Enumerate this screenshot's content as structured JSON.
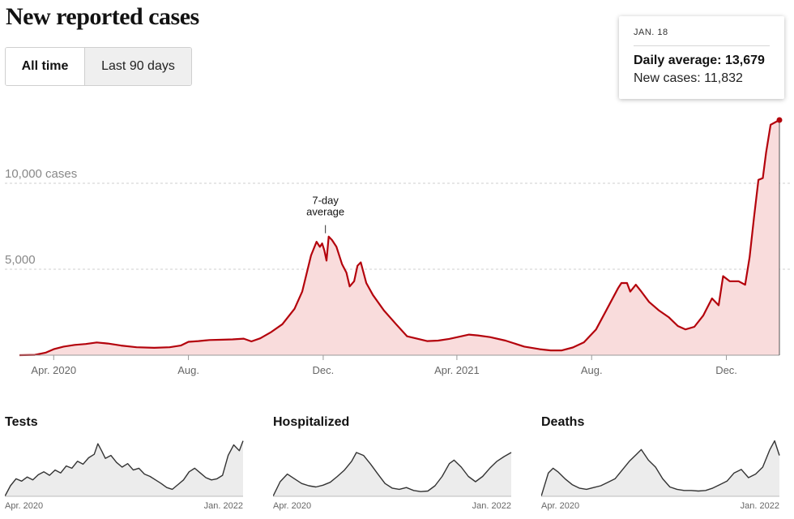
{
  "title": "New reported cases",
  "toggle": {
    "all_time": "All time",
    "last_90": "Last 90 days",
    "selected": "All time"
  },
  "colors": {
    "line": "#b4030c",
    "area": "#f9dcdc",
    "small_line": "#333333",
    "small_area": "#ececec"
  },
  "tooltip": {
    "date": "JAN. 18",
    "avg_label": "Daily average: 13,679",
    "new_label": "New cases: 11,832"
  },
  "chart_data": [
    {
      "type": "area",
      "title": "New reported cases",
      "y_tick_labels": [
        "10,000 cases",
        "5,000"
      ],
      "y_ticks": [
        10000,
        5000
      ],
      "ylim": [
        0,
        15000
      ],
      "x_tick_labels": [
        "Apr. 2020",
        "Aug.",
        "Dec.",
        "Apr. 2021",
        "Aug.",
        "Dec."
      ],
      "x_ticks": [
        "2020-04-01",
        "2020-08-01",
        "2020-12-01",
        "2021-04-01",
        "2021-08-01",
        "2021-12-01"
      ],
      "xlim": [
        "2020-03-01",
        "2022-01-18"
      ],
      "grid": "horizontal dashed",
      "annotation": {
        "text": [
          "7-day",
          "average"
        ],
        "x": "2020-12-03",
        "y": 7000
      },
      "series": [
        {
          "name": "7-day average",
          "points": [
            [
              "2020-03-01",
              0
            ],
            [
              "2020-03-15",
              20
            ],
            [
              "2020-03-25",
              150
            ],
            [
              "2020-04-01",
              350
            ],
            [
              "2020-04-10",
              500
            ],
            [
              "2020-04-20",
              600
            ],
            [
              "2020-04-30",
              650
            ],
            [
              "2020-05-10",
              740
            ],
            [
              "2020-05-20",
              680
            ],
            [
              "2020-06-01",
              560
            ],
            [
              "2020-06-15",
              460
            ],
            [
              "2020-07-01",
              430
            ],
            [
              "2020-07-15",
              460
            ],
            [
              "2020-07-25",
              560
            ],
            [
              "2020-08-01",
              780
            ],
            [
              "2020-08-10",
              820
            ],
            [
              "2020-08-20",
              880
            ],
            [
              "2020-09-01",
              900
            ],
            [
              "2020-09-10",
              920
            ],
            [
              "2020-09-20",
              960
            ],
            [
              "2020-09-27",
              800
            ],
            [
              "2020-10-05",
              980
            ],
            [
              "2020-10-15",
              1350
            ],
            [
              "2020-10-25",
              1800
            ],
            [
              "2020-11-05",
              2700
            ],
            [
              "2020-11-12",
              3700
            ],
            [
              "2020-11-20",
              5800
            ],
            [
              "2020-11-25",
              6600
            ],
            [
              "2020-11-28",
              6300
            ],
            [
              "2020-11-30",
              6500
            ],
            [
              "2020-12-02",
              6100
            ],
            [
              "2020-12-04",
              5500
            ],
            [
              "2020-12-06",
              6900
            ],
            [
              "2020-12-09",
              6700
            ],
            [
              "2020-12-13",
              6300
            ],
            [
              "2020-12-18",
              5300
            ],
            [
              "2020-12-22",
              4800
            ],
            [
              "2020-12-25",
              4000
            ],
            [
              "2020-12-29",
              4300
            ],
            [
              "2021-01-01",
              5200
            ],
            [
              "2021-01-04",
              5400
            ],
            [
              "2021-01-09",
              4200
            ],
            [
              "2021-01-15",
              3500
            ],
            [
              "2021-01-25",
              2600
            ],
            [
              "2021-02-05",
              1800
            ],
            [
              "2021-02-15",
              1100
            ],
            [
              "2021-02-25",
              950
            ],
            [
              "2021-03-05",
              820
            ],
            [
              "2021-03-15",
              850
            ],
            [
              "2021-03-25",
              950
            ],
            [
              "2021-04-05",
              1100
            ],
            [
              "2021-04-12",
              1200
            ],
            [
              "2021-04-20",
              1150
            ],
            [
              "2021-05-01",
              1050
            ],
            [
              "2021-05-15",
              850
            ],
            [
              "2021-06-01",
              500
            ],
            [
              "2021-06-15",
              350
            ],
            [
              "2021-06-25",
              280
            ],
            [
              "2021-07-05",
              280
            ],
            [
              "2021-07-15",
              450
            ],
            [
              "2021-07-25",
              750
            ],
            [
              "2021-08-05",
              1500
            ],
            [
              "2021-08-15",
              2700
            ],
            [
              "2021-08-25",
              3900
            ],
            [
              "2021-08-28",
              4200
            ],
            [
              "2021-09-02",
              4200
            ],
            [
              "2021-09-05",
              3700
            ],
            [
              "2021-09-10",
              4100
            ],
            [
              "2021-09-15",
              3700
            ],
            [
              "2021-09-22",
              3100
            ],
            [
              "2021-10-01",
              2600
            ],
            [
              "2021-10-10",
              2200
            ],
            [
              "2021-10-18",
              1700
            ],
            [
              "2021-10-25",
              1500
            ],
            [
              "2021-11-02",
              1650
            ],
            [
              "2021-11-10",
              2300
            ],
            [
              "2021-11-18",
              3300
            ],
            [
              "2021-11-24",
              2900
            ],
            [
              "2021-11-28",
              4600
            ],
            [
              "2021-12-04",
              4300
            ],
            [
              "2021-12-12",
              4300
            ],
            [
              "2021-12-18",
              4100
            ],
            [
              "2021-12-22",
              5700
            ],
            [
              "2021-12-26",
              8000
            ],
            [
              "2021-12-30",
              10200
            ],
            [
              "2022-01-03",
              10300
            ],
            [
              "2022-01-06",
              11800
            ],
            [
              "2022-01-10",
              13400
            ],
            [
              "2022-01-18",
              13679
            ]
          ]
        }
      ]
    },
    {
      "type": "area",
      "title": "Tests",
      "x_tick_labels": [
        "Apr. 2020",
        "Jan. 2022"
      ],
      "series": [
        {
          "points": [
            [
              0,
              0
            ],
            [
              3,
              18
            ],
            [
              6,
              30
            ],
            [
              9,
              26
            ],
            [
              12,
              33
            ],
            [
              15,
              28
            ],
            [
              18,
              37
            ],
            [
              21,
              42
            ],
            [
              24,
              36
            ],
            [
              27,
              45
            ],
            [
              30,
              40
            ],
            [
              33,
              52
            ],
            [
              36,
              48
            ],
            [
              39,
              60
            ],
            [
              42,
              55
            ],
            [
              45,
              66
            ],
            [
              48,
              72
            ],
            [
              50,
              90
            ],
            [
              52,
              78
            ],
            [
              54,
              65
            ],
            [
              57,
              70
            ],
            [
              60,
              58
            ],
            [
              63,
              50
            ],
            [
              66,
              56
            ],
            [
              69,
              45
            ],
            [
              72,
              48
            ],
            [
              75,
              38
            ],
            [
              78,
              34
            ],
            [
              81,
              28
            ],
            [
              84,
              22
            ],
            [
              87,
              15
            ],
            [
              90,
              12
            ],
            [
              93,
              20
            ],
            [
              96,
              28
            ],
            [
              99,
              42
            ],
            [
              102,
              48
            ],
            [
              105,
              40
            ],
            [
              108,
              32
            ],
            [
              111,
              28
            ],
            [
              114,
              30
            ],
            [
              117,
              36
            ],
            [
              120,
              70
            ],
            [
              123,
              88
            ],
            [
              126,
              78
            ],
            [
              128,
              95
            ]
          ]
        }
      ]
    },
    {
      "type": "area",
      "title": "Hospitalized",
      "x_tick_labels": [
        "Apr. 2020",
        "Jan. 2022"
      ],
      "series": [
        {
          "points": [
            [
              0,
              0
            ],
            [
              3,
              25
            ],
            [
              6,
              38
            ],
            [
              9,
              30
            ],
            [
              12,
              22
            ],
            [
              15,
              18
            ],
            [
              18,
              16
            ],
            [
              21,
              19
            ],
            [
              24,
              24
            ],
            [
              27,
              34
            ],
            [
              30,
              45
            ],
            [
              33,
              60
            ],
            [
              35,
              75
            ],
            [
              38,
              70
            ],
            [
              41,
              55
            ],
            [
              44,
              38
            ],
            [
              47,
              22
            ],
            [
              50,
              14
            ],
            [
              53,
              12
            ],
            [
              56,
              15
            ],
            [
              59,
              10
            ],
            [
              62,
              8
            ],
            [
              65,
              9
            ],
            [
              68,
              18
            ],
            [
              71,
              34
            ],
            [
              74,
              56
            ],
            [
              76,
              62
            ],
            [
              79,
              50
            ],
            [
              82,
              34
            ],
            [
              85,
              25
            ],
            [
              88,
              34
            ],
            [
              91,
              48
            ],
            [
              94,
              60
            ],
            [
              97,
              68
            ],
            [
              100,
              75
            ]
          ]
        }
      ]
    },
    {
      "type": "area",
      "title": "Deaths",
      "x_tick_labels": [
        "Apr. 2020",
        "Jan. 2022"
      ],
      "series": [
        {
          "points": [
            [
              0,
              0
            ],
            [
              3,
              40
            ],
            [
              5,
              48
            ],
            [
              7,
              42
            ],
            [
              10,
              30
            ],
            [
              13,
              20
            ],
            [
              16,
              14
            ],
            [
              19,
              12
            ],
            [
              22,
              15
            ],
            [
              25,
              18
            ],
            [
              28,
              24
            ],
            [
              31,
              30
            ],
            [
              34,
              45
            ],
            [
              37,
              60
            ],
            [
              40,
              72
            ],
            [
              42,
              80
            ],
            [
              45,
              62
            ],
            [
              48,
              50
            ],
            [
              51,
              30
            ],
            [
              54,
              16
            ],
            [
              57,
              12
            ],
            [
              60,
              10
            ],
            [
              63,
              10
            ],
            [
              66,
              9
            ],
            [
              69,
              10
            ],
            [
              72,
              14
            ],
            [
              75,
              20
            ],
            [
              78,
              26
            ],
            [
              81,
              40
            ],
            [
              84,
              46
            ],
            [
              87,
              32
            ],
            [
              90,
              38
            ],
            [
              93,
              50
            ],
            [
              96,
              80
            ],
            [
              98,
              95
            ],
            [
              100,
              70
            ]
          ]
        }
      ]
    }
  ]
}
